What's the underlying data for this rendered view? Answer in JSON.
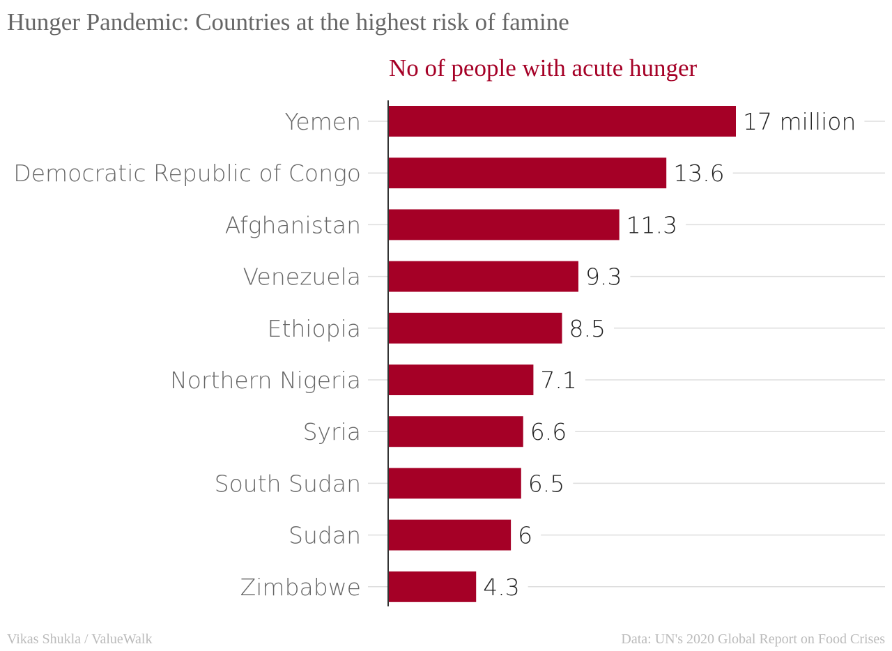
{
  "title": "Hunger Pandemic: Countries at the highest risk of famine",
  "footer": {
    "credit": "Vikas Shukla / ValueWalk",
    "source": "Data: UN's 2020 Global Report on Food Crises"
  },
  "chart_data": {
    "type": "bar",
    "orientation": "horizontal",
    "title": "No of people with acute hunger",
    "categories": [
      "Yemen",
      "Democratic Republic of Congo",
      "Afghanistan",
      "Venezuela",
      "Ethiopia",
      "Northern Nigeria",
      "Syria",
      "South Sudan",
      "Sudan",
      "Zimbabwe"
    ],
    "values": [
      17,
      13.6,
      11.3,
      9.3,
      8.5,
      7.1,
      6.6,
      6.5,
      6,
      4.3
    ],
    "data_labels": [
      "17 million",
      "13.6",
      "11.3",
      "9.3",
      "8.5",
      "7.1",
      "6.6",
      "6.5",
      "6",
      "4.3"
    ],
    "unit": "million",
    "xlim": [
      0,
      17
    ],
    "bar_color": "#a50026",
    "grid": true
  }
}
